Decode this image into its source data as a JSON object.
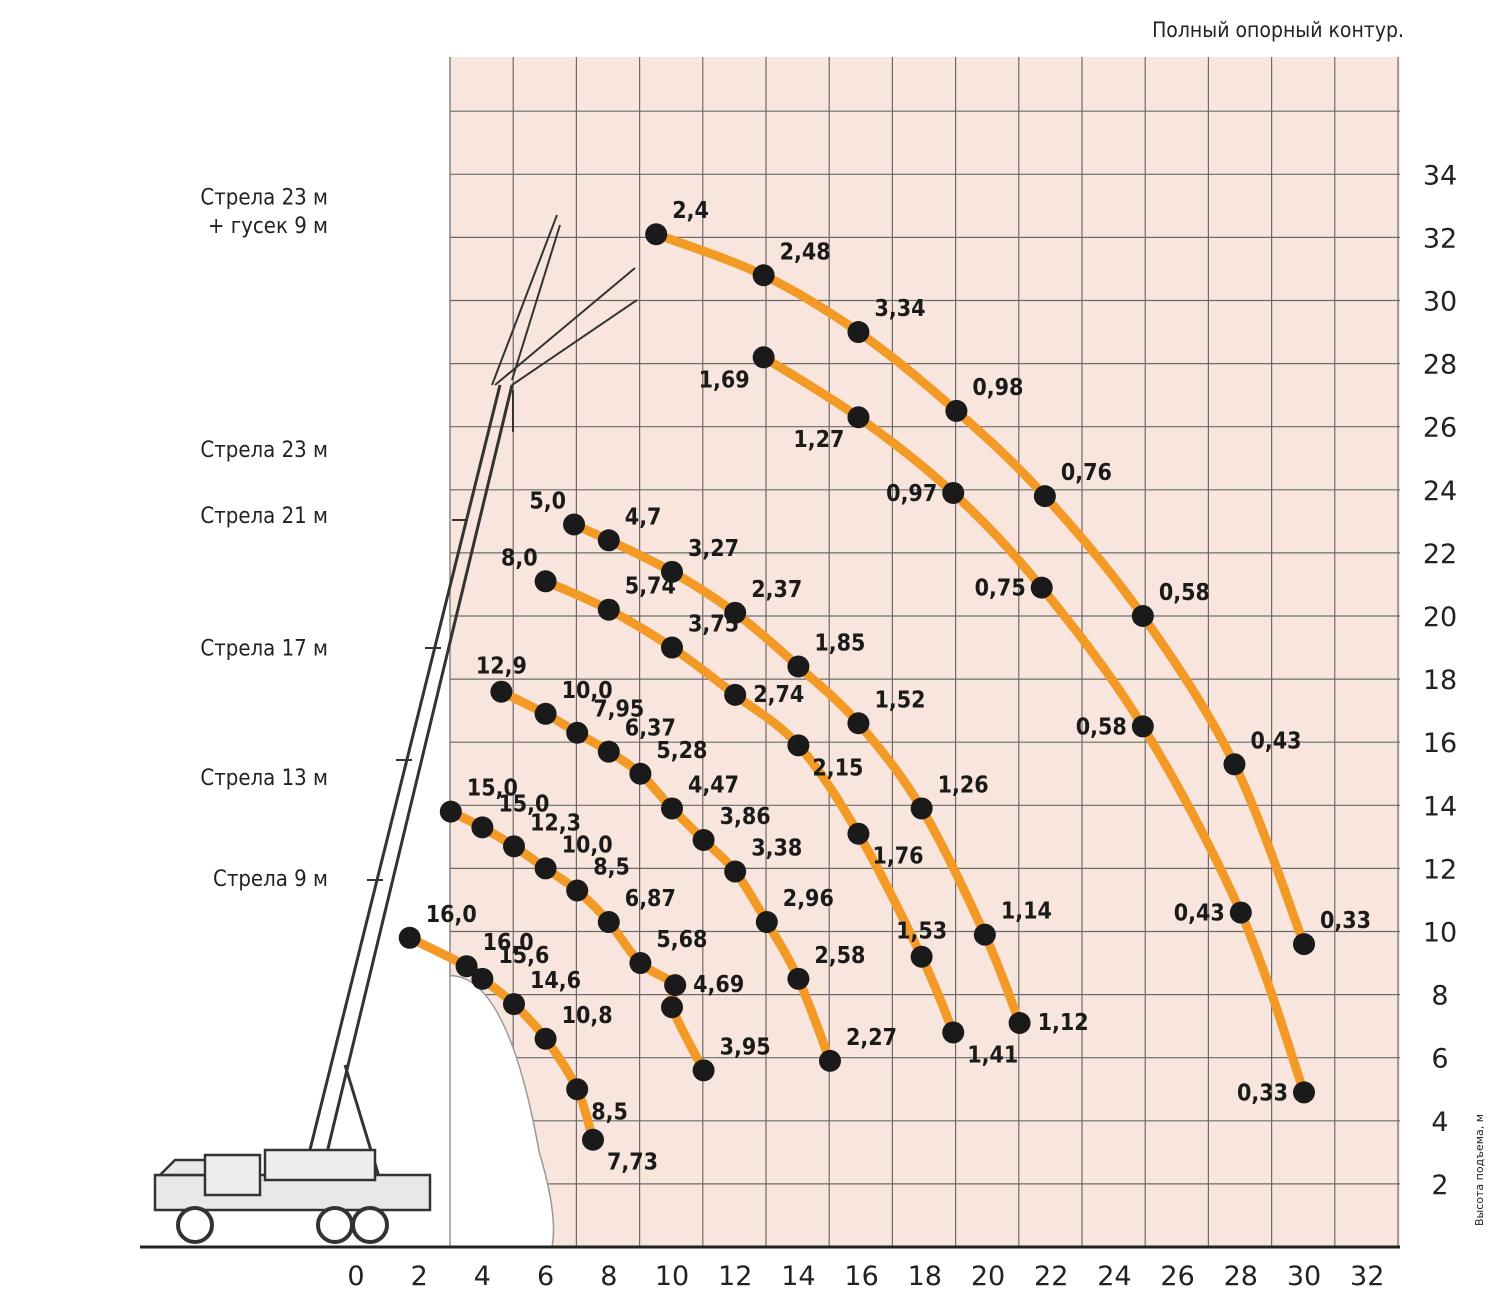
{
  "chart_data": {
    "type": "line",
    "title": "",
    "note": "Полный опорный контур.",
    "ylabel": "Высота подъема, м",
    "xlabel": "",
    "xlim": [
      -4,
      32
    ],
    "ylim": [
      0,
      38
    ],
    "x_ticks": [
      "0",
      "2",
      "4",
      "6",
      "8",
      "10",
      "12",
      "14",
      "16",
      "18",
      "20",
      "22",
      "24",
      "26",
      "28",
      "30",
      "32"
    ],
    "y_ticks": [
      "2",
      "4",
      "6",
      "8",
      "10",
      "12",
      "14",
      "16",
      "18",
      "20",
      "22",
      "24",
      "26",
      "28",
      "30",
      "32",
      "34"
    ],
    "grid": true,
    "line_color": "#f39a26",
    "grid_bg": "#f8e6de",
    "grid_line": "#6b6b6b",
    "boom_names": [
      {
        "text": "Стрела 23 м",
        "y": 33.3
      },
      {
        "text": "+ гусек 9 м",
        "y": 32.4
      },
      {
        "text": "Стрела 23 м",
        "y": 25.3
      },
      {
        "text": "Стрела 21 м",
        "y": 23.2
      },
      {
        "text": "Стрела 17 м",
        "y": 19.0
      },
      {
        "text": "Стрела 13 м",
        "y": 14.9
      },
      {
        "text": "Стрела 9 м",
        "y": 11.7
      }
    ],
    "series": [
      {
        "points": [
          {
            "x": 9.5,
            "y": 32.1,
            "label": "2,4",
            "pos": "ne"
          },
          {
            "x": 12.9,
            "y": 30.8,
            "label": "2,48",
            "pos": "ne"
          },
          {
            "x": 15.9,
            "y": 29.0,
            "label": "3,34",
            "pos": "ne"
          },
          {
            "x": 19.0,
            "y": 26.5,
            "label": "0,98",
            "pos": "ne"
          },
          {
            "x": 21.8,
            "y": 23.8,
            "label": "0,76",
            "pos": "ne"
          },
          {
            "x": 24.9,
            "y": 20.0,
            "label": "0,58",
            "pos": "ne"
          },
          {
            "x": 27.8,
            "y": 15.3,
            "label": "0,43",
            "pos": "ne"
          },
          {
            "x": 30.0,
            "y": 9.6,
            "label": "0,33",
            "pos": "ne"
          }
        ]
      },
      {
        "points": [
          {
            "x": 12.9,
            "y": 28.2,
            "label": "1,69",
            "pos": "sw"
          },
          {
            "x": 15.9,
            "y": 26.3,
            "label": "1,27",
            "pos": "sw"
          },
          {
            "x": 18.9,
            "y": 23.9,
            "label": "0,97",
            "pos": "w"
          },
          {
            "x": 21.7,
            "y": 20.9,
            "label": "0,75",
            "pos": "w"
          },
          {
            "x": 24.9,
            "y": 16.5,
            "label": "0,58",
            "pos": "w"
          },
          {
            "x": 28.0,
            "y": 10.6,
            "label": "0,43",
            "pos": "w"
          },
          {
            "x": 30.0,
            "y": 4.9,
            "label": "0,33",
            "pos": "w"
          }
        ]
      },
      {
        "points": [
          {
            "x": 6.9,
            "y": 22.9,
            "label": "5,0",
            "pos": "nw"
          },
          {
            "x": 8.0,
            "y": 22.4,
            "label": "4,7",
            "pos": "ne"
          },
          {
            "x": 10.0,
            "y": 21.4,
            "label": "3,27",
            "pos": "ne"
          },
          {
            "x": 12.0,
            "y": 20.1,
            "label": "2,37",
            "pos": "ne"
          },
          {
            "x": 14.0,
            "y": 18.4,
            "label": "1,85",
            "pos": "ne"
          },
          {
            "x": 15.9,
            "y": 16.6,
            "label": "1,52",
            "pos": "ne"
          },
          {
            "x": 17.9,
            "y": 13.9,
            "label": "1,26",
            "pos": "ne"
          },
          {
            "x": 19.9,
            "y": 9.9,
            "label": "1,14",
            "pos": "ne"
          },
          {
            "x": 21.0,
            "y": 7.1,
            "label": "1,12",
            "pos": "e"
          }
        ]
      },
      {
        "points": [
          {
            "x": 6.0,
            "y": 21.1,
            "label": "8,0",
            "pos": "nw"
          },
          {
            "x": 8.0,
            "y": 20.2,
            "label": "5,74",
            "pos": "ne"
          },
          {
            "x": 10.0,
            "y": 19.0,
            "label": "3,75",
            "pos": "ne"
          },
          {
            "x": 12.0,
            "y": 17.5,
            "label": "2,74",
            "pos": "e"
          },
          {
            "x": 14.0,
            "y": 15.9,
            "label": "2,15",
            "pos": "se"
          },
          {
            "x": 15.9,
            "y": 13.1,
            "label": "1,76",
            "pos": "se"
          },
          {
            "x": 17.9,
            "y": 9.2,
            "label": "1,53",
            "pos": "n"
          },
          {
            "x": 18.9,
            "y": 6.8,
            "label": "1,41",
            "pos": "se"
          }
        ]
      },
      {
        "points": [
          {
            "x": 4.6,
            "y": 17.6,
            "label": "12,9",
            "pos": "n"
          },
          {
            "x": 6.0,
            "y": 16.9,
            "label": "10,0",
            "pos": "ne"
          },
          {
            "x": 7.0,
            "y": 16.3,
            "label": "7,95",
            "pos": "ne"
          },
          {
            "x": 8.0,
            "y": 15.7,
            "label": "6,37",
            "pos": "ne"
          },
          {
            "x": 9.0,
            "y": 15.0,
            "label": "5,28",
            "pos": "ne"
          },
          {
            "x": 10.0,
            "y": 13.9,
            "label": "4,47",
            "pos": "ne"
          },
          {
            "x": 11.0,
            "y": 12.9,
            "label": "3,86",
            "pos": "ne"
          },
          {
            "x": 12.0,
            "y": 11.9,
            "label": "3,38",
            "pos": "ne"
          },
          {
            "x": 13.0,
            "y": 10.3,
            "label": "2,96",
            "pos": "ne"
          },
          {
            "x": 14.0,
            "y": 8.5,
            "label": "2,58",
            "pos": "ne"
          },
          {
            "x": 15.0,
            "y": 5.9,
            "label": "2,27",
            "pos": "ne"
          }
        ]
      },
      {
        "points": [
          {
            "x": 3.0,
            "y": 13.8,
            "label": "15,0",
            "pos": "ne"
          },
          {
            "x": 4.0,
            "y": 13.3,
            "label": "15,0",
            "pos": "ne"
          },
          {
            "x": 5.0,
            "y": 12.7,
            "label": "12,3",
            "pos": "ne"
          },
          {
            "x": 6.0,
            "y": 12.0,
            "label": "10,0",
            "pos": "ne"
          },
          {
            "x": 7.0,
            "y": 11.3,
            "label": "8,5",
            "pos": "ne"
          },
          {
            "x": 8.0,
            "y": 10.3,
            "label": "6,87",
            "pos": "ne"
          },
          {
            "x": 9.0,
            "y": 9.0,
            "label": "5,68",
            "pos": "ne"
          },
          {
            "x": 10.1,
            "y": 8.3,
            "label": "4,69",
            "pos": "e"
          },
          {
            "x": 10.0,
            "y": 7.6,
            "label": "",
            "pos": "e"
          },
          {
            "x": 11.0,
            "y": 5.6,
            "label": "3,95",
            "pos": "ne"
          }
        ]
      },
      {
        "points": [
          {
            "x": 1.7,
            "y": 9.8,
            "label": "16,0",
            "pos": "ne"
          },
          {
            "x": 3.5,
            "y": 8.9,
            "label": "16,0",
            "pos": "ne"
          },
          {
            "x": 4.0,
            "y": 8.5,
            "label": "15,6",
            "pos": "ne"
          },
          {
            "x": 5.0,
            "y": 7.7,
            "label": "14,6",
            "pos": "ne"
          },
          {
            "x": 6.0,
            "y": 6.6,
            "label": "10,8",
            "pos": "ne"
          },
          {
            "x": 7.0,
            "y": 5.0,
            "label": "8,5",
            "pos": "se"
          },
          {
            "x": 7.5,
            "y": 3.4,
            "label": "7,73",
            "pos": "se"
          }
        ]
      }
    ]
  }
}
